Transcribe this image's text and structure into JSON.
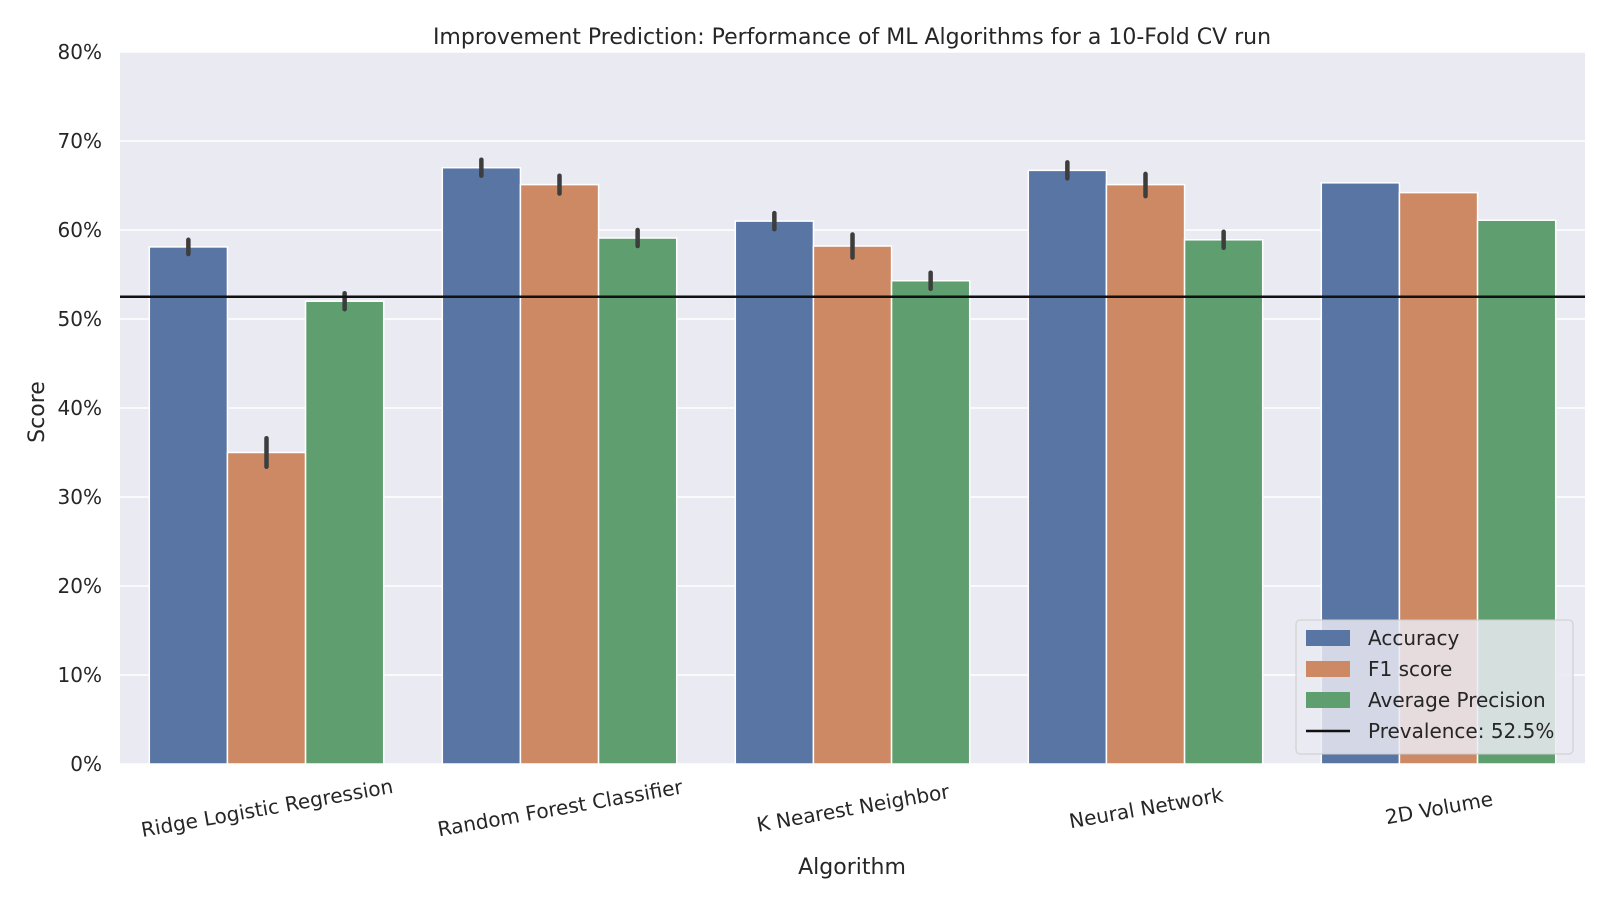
{
  "chart_data": {
    "type": "bar",
    "title": "Improvement Prediction: Performance of ML Algorithms for a 10-Fold CV run",
    "xlabel": "Algorithm",
    "ylabel": "Score",
    "ylim": [
      0,
      80
    ],
    "yticks": [
      "0%",
      "10%",
      "20%",
      "30%",
      "40%",
      "50%",
      "60%",
      "70%",
      "80%"
    ],
    "grid": true,
    "legend_position": "bottom-right",
    "categories": [
      "Ridge Logistic Regression",
      "Random Forest Classifier",
      "K Nearest Neighbor",
      "Neural Network",
      "2D Volume"
    ],
    "series": [
      {
        "name": "Accuracy",
        "color": "#5875a4",
        "values": [
          58.1,
          67.0,
          61.0,
          66.7,
          65.3
        ],
        "error": [
          [
            57.3,
            58.9
          ],
          [
            66.1,
            67.9
          ],
          [
            60.1,
            61.9
          ],
          [
            65.8,
            67.6
          ],
          null
        ]
      },
      {
        "name": "F1 score",
        "color": "#cc8963",
        "values": [
          35.0,
          65.1,
          58.2,
          65.1,
          64.2
        ],
        "error": [
          [
            33.4,
            36.6
          ],
          [
            64.1,
            66.1
          ],
          [
            56.9,
            59.5
          ],
          [
            63.8,
            66.3
          ],
          null
        ]
      },
      {
        "name": "Average Precision",
        "color": "#5f9e6e",
        "values": [
          52.0,
          59.1,
          54.3,
          58.9,
          61.1
        ],
        "error": [
          [
            51.1,
            52.9
          ],
          [
            58.2,
            60.0
          ],
          [
            53.4,
            55.2
          ],
          [
            58.0,
            59.8
          ],
          null
        ]
      }
    ],
    "reference_line": {
      "label": "Prevalence: 52.5%",
      "value": 52.5,
      "color": "#111111"
    }
  }
}
